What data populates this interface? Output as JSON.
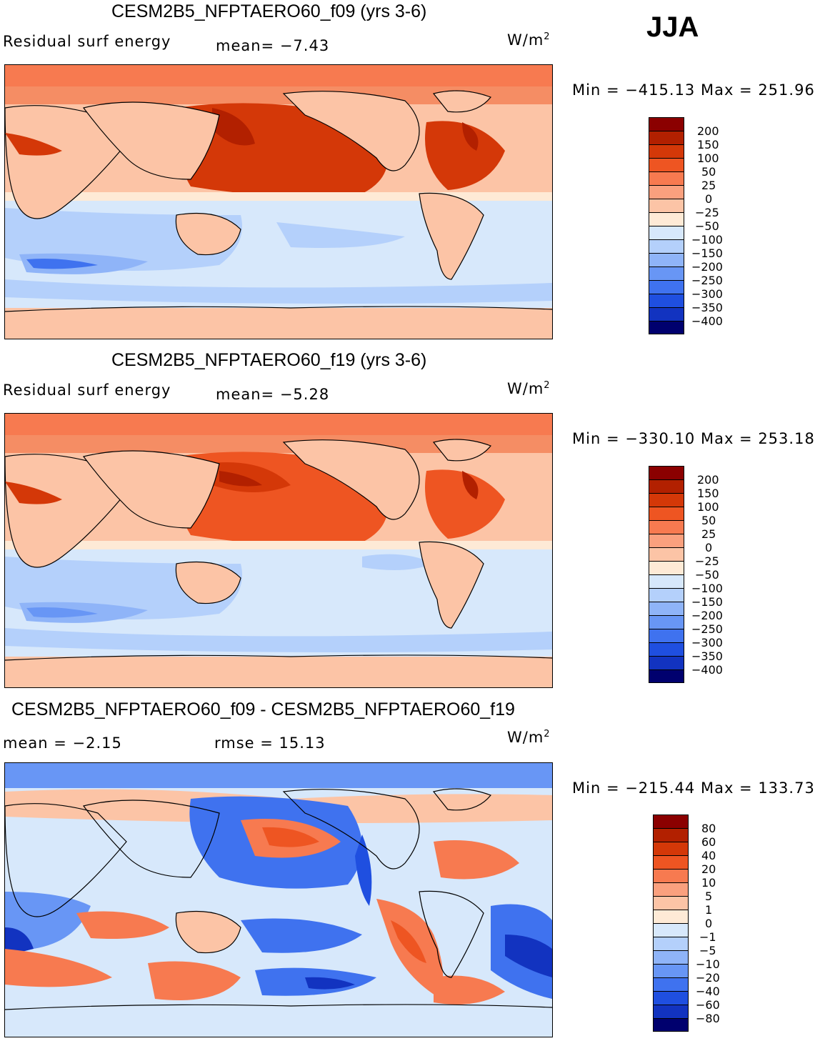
{
  "season": "JJA",
  "panels": [
    {
      "title": "CESM2B5_NFPTAERO60_f09 (yrs 3-6)",
      "variable": "Residual surf energy",
      "stat_text": "mean=   −7.43",
      "units": "W/m",
      "units_exp": "2",
      "minmax": "Min  =  −415.13  Max  =  251.96"
    },
    {
      "title": "CESM2B5_NFPTAERO60_f19 (yrs 3-6)",
      "variable": "Residual surf energy",
      "stat_text": "mean=   −5.28",
      "units": "W/m",
      "units_exp": "2",
      "minmax": "Min  =  −330.10  Max  =  253.18"
    },
    {
      "title": "CESM2B5_NFPTAERO60_f09 - CESM2B5_NFPTAERO60_f19",
      "mean_text": "mean  =   −2.15",
      "rmse_text": "rmse  =   15.13",
      "units": "W/m",
      "units_exp": "2",
      "minmax": "Min  =  −215.44  Max  =  133.73"
    }
  ],
  "chart_data": [
    {
      "type": "heatmap",
      "title": "CESM2B5_NFPTAERO60_f09 (yrs 3-6)",
      "variable": "Residual surf energy",
      "units": "W/m2",
      "mean": -7.43,
      "min": -415.13,
      "max": 251.96,
      "levels": [
        "200",
        "150",
        "100",
        "50",
        "25",
        "0",
        "−25",
        "−50",
        "−100",
        "−150",
        "−200",
        "−250",
        "−300",
        "−350",
        "−400"
      ],
      "colors": [
        "#8b0000",
        "#b22000",
        "#d43808",
        "#ee5522",
        "#f77a50",
        "#faa07e",
        "#fcc4a6",
        "#feead6",
        "#d7e8fb",
        "#b4d0fb",
        "#8fb4f8",
        "#6896f5",
        "#3f72ef",
        "#1f4fe0",
        "#1233c0",
        "#0a1f99",
        "#00006e"
      ]
    },
    {
      "type": "heatmap",
      "title": "CESM2B5_NFPTAERO60_f19 (yrs 3-6)",
      "variable": "Residual surf energy",
      "units": "W/m2",
      "mean": -5.28,
      "min": -330.1,
      "max": 253.18,
      "levels": [
        "200",
        "150",
        "100",
        "50",
        "25",
        "0",
        "−25",
        "−50",
        "−100",
        "−150",
        "−200",
        "−250",
        "−300",
        "−350",
        "−400"
      ],
      "colors": [
        "#8b0000",
        "#b22000",
        "#d43808",
        "#ee5522",
        "#f77a50",
        "#faa07e",
        "#fcc4a6",
        "#feead6",
        "#d7e8fb",
        "#b4d0fb",
        "#8fb4f8",
        "#6896f5",
        "#3f72ef",
        "#1f4fe0",
        "#1233c0",
        "#0a1f99",
        "#00006e"
      ]
    },
    {
      "type": "heatmap",
      "title": "CESM2B5_NFPTAERO60_f09 - CESM2B5_NFPTAERO60_f19",
      "units": "W/m2",
      "mean": -2.15,
      "rmse": 15.13,
      "min": -215.44,
      "max": 133.73,
      "levels": [
        "80",
        "60",
        "40",
        "20",
        "10",
        "5",
        "1",
        "0",
        "−1",
        "−5",
        "−10",
        "−20",
        "−40",
        "−60",
        "−80"
      ],
      "colors": [
        "#8b0000",
        "#b22000",
        "#d43808",
        "#ee5522",
        "#f77a50",
        "#faa07e",
        "#fcc4a6",
        "#feead6",
        "#d7e8fb",
        "#b4d0fb",
        "#8fb4f8",
        "#6896f5",
        "#3f72ef",
        "#1f4fe0",
        "#1233c0",
        "#0a1f99",
        "#00006e"
      ]
    }
  ]
}
